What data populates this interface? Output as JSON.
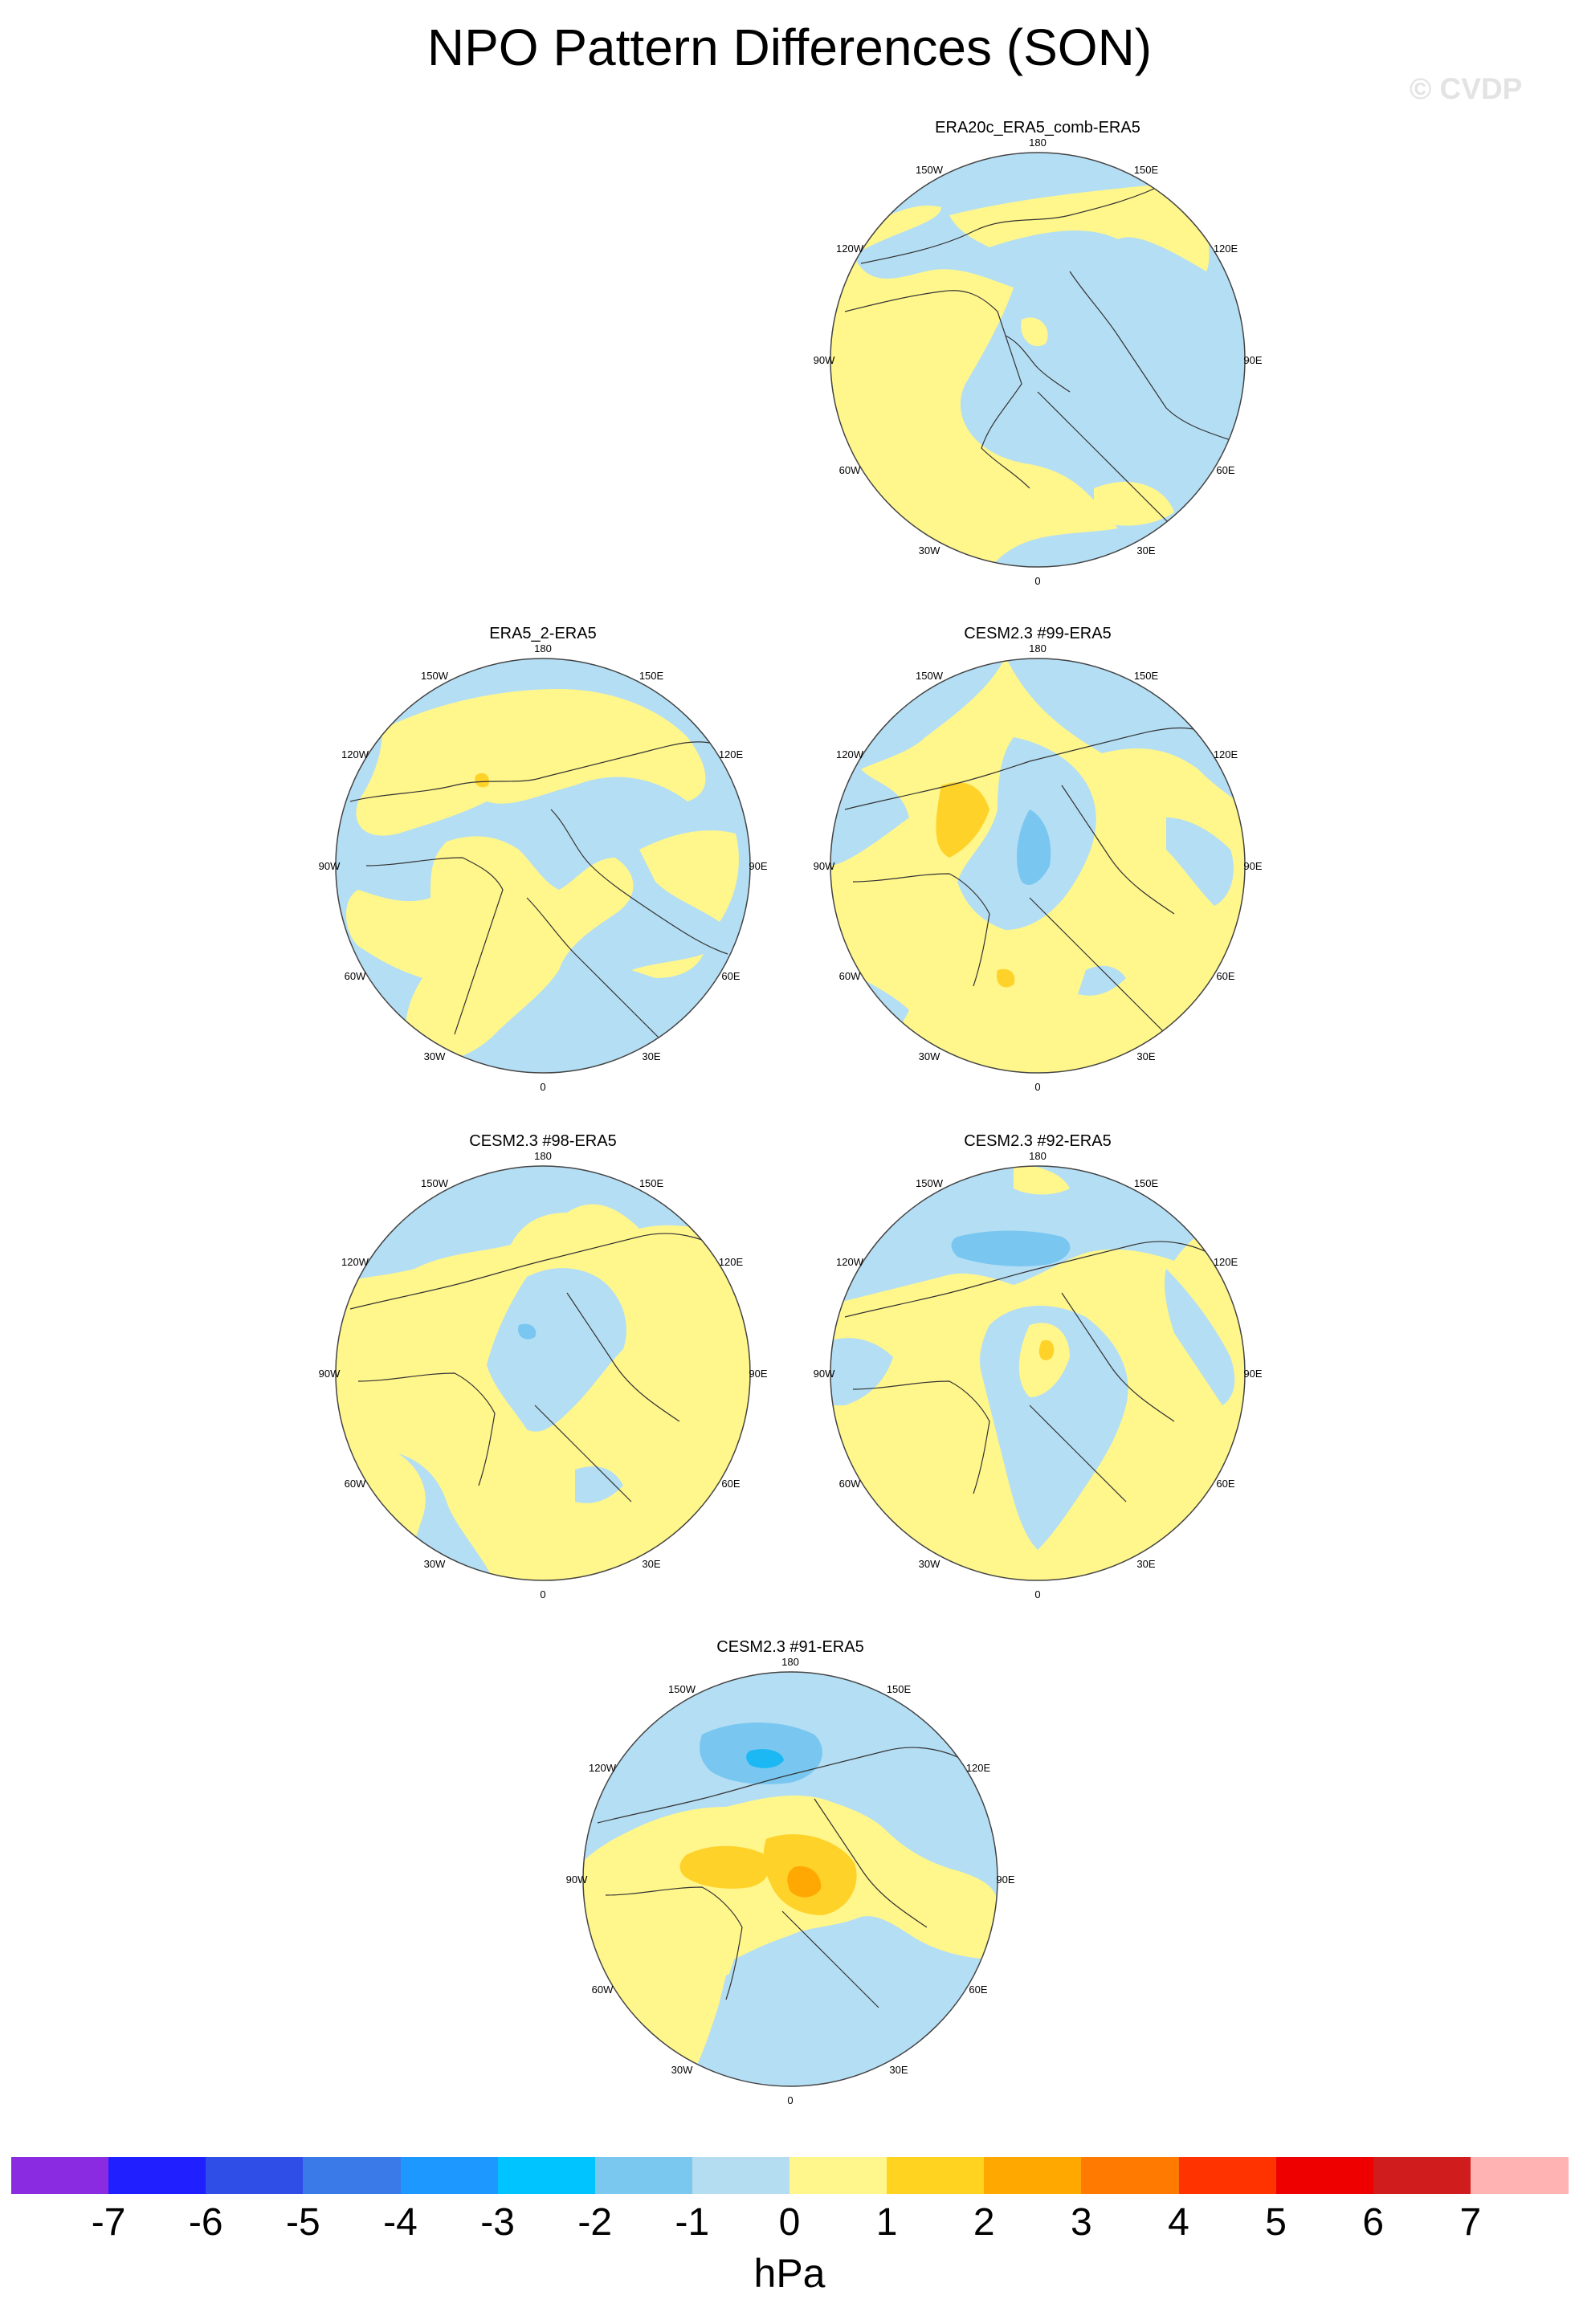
{
  "title": "NPO Pattern Differences (SON)",
  "watermark": "© CVDP",
  "longitude_labels": {
    "top": "180",
    "top_right": "150E",
    "right_upper": "120E",
    "right": "90E",
    "right_lower": "60E",
    "bottom_right": "30E",
    "bottom": "0",
    "bottom_left": "30W",
    "left_lower": "60W",
    "left": "90W",
    "left_upper": "120W",
    "top_left": "150W"
  },
  "panels": [
    {
      "title": "ERA20c_ERA5_comb-ERA5"
    },
    {
      "title": "ERA5_2-ERA5"
    },
    {
      "title": "CESM2.3 #99-ERA5"
    },
    {
      "title": "CESM2.3 #98-ERA5"
    },
    {
      "title": "CESM2.3 #92-ERA5"
    },
    {
      "title": "CESM2.3 #91-ERA5"
    }
  ],
  "colors": {
    "neg1": "#b4def4",
    "neg2": "#79c7f0",
    "neg3": "#1bb8f4",
    "pos1": "#fff68c",
    "pos2": "#ffd22a",
    "pos3": "#ffa703",
    "coast": "#333333",
    "outline": "#444444"
  },
  "colorbar": {
    "units": "hPa",
    "labels": [
      "-7",
      "-6",
      "-5",
      "-4",
      "-3",
      "-2",
      "-1",
      "0",
      "1",
      "2",
      "3",
      "4",
      "5",
      "6",
      "7"
    ],
    "colors": [
      "#8a2be2",
      "#1f1fff",
      "#2f4ee8",
      "#3a7ae8",
      "#1d98ff",
      "#00c4ff",
      "#7ac8f0",
      "#b5ddf2",
      "#fff78c",
      "#ffd31f",
      "#ffa800",
      "#ff7a00",
      "#ff3300",
      "#ee0000",
      "#d01c1c",
      "#ffb3b3"
    ]
  }
}
